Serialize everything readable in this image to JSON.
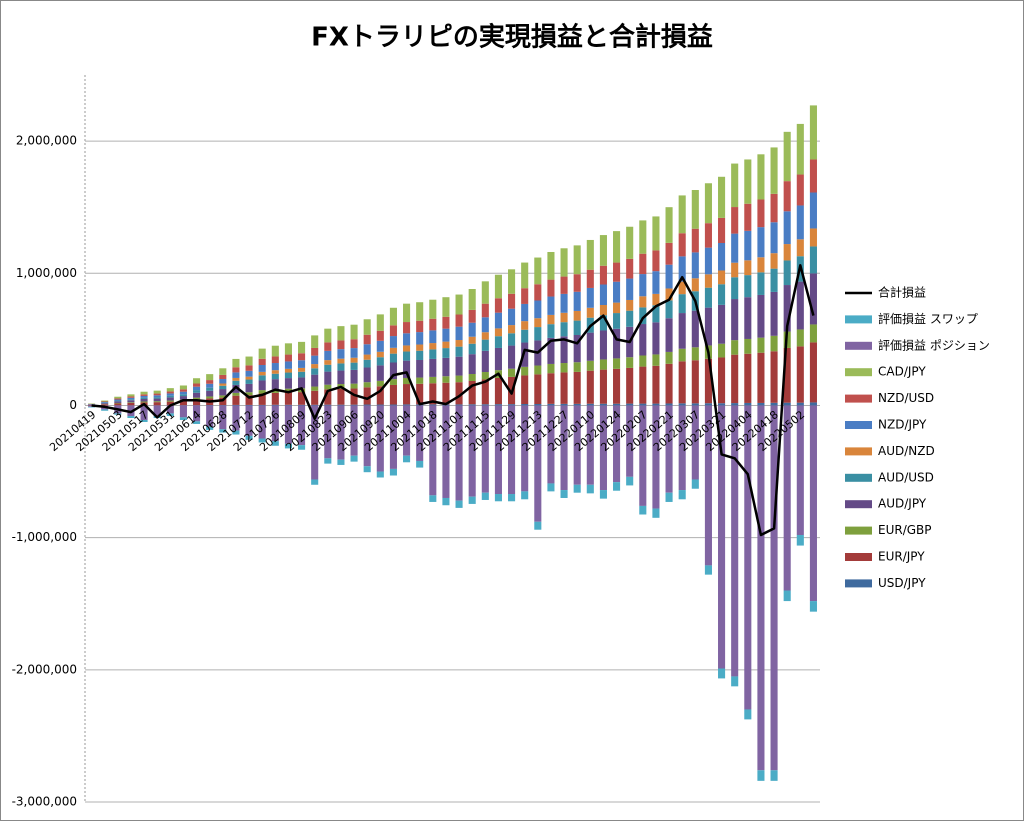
{
  "chart_data": {
    "type": "bar",
    "stacked": true,
    "title": "FXトラリピの実現損益と合計損益",
    "categories": [
      "20210419",
      null,
      "20210503",
      null,
      "20210517",
      null,
      "20210531",
      null,
      "20210614",
      null,
      "20210628",
      null,
      "20210712",
      null,
      "20210726",
      null,
      "20210809",
      null,
      "20210823",
      null,
      "20210906",
      null,
      "20210920",
      null,
      "20211004",
      null,
      "20211018",
      null,
      "20211101",
      null,
      "20211115",
      null,
      "20211129",
      null,
      "20211213",
      null,
      "20211227",
      null,
      "20220110",
      null,
      "20220124",
      null,
      "20220207",
      null,
      "20220221",
      null,
      "20220307",
      null,
      "20220321",
      null,
      "20220404",
      null,
      "20220418",
      null,
      "20220502",
      null
    ],
    "ylim": [
      -3000000,
      2500000
    ],
    "yticks": [
      {
        "value": -3000000,
        "label": "-3,000,000"
      },
      {
        "value": -2000000,
        "label": "-2,000,000"
      },
      {
        "value": -1000000,
        "label": "-1,000,000"
      },
      0,
      {
        "value": 1000000,
        "label": "1,000,000"
      },
      {
        "value": 2000000,
        "label": "2,000,000"
      }
    ],
    "negative_tick_color": "#ff0000",
    "grid": true,
    "legend": "right",
    "series": [
      {
        "name": "USD/JPY",
        "color": "#3f6a9e",
        "values": [
          0,
          0,
          1000,
          1000,
          1000,
          1000,
          1000,
          2000,
          2000,
          3000,
          3000,
          4000,
          4000,
          4000,
          5000,
          5000,
          5000,
          5000,
          6000,
          6000,
          6000,
          7000,
          7000,
          7000,
          8000,
          8000,
          8000,
          8000,
          8000,
          9000,
          9000,
          10000,
          10000,
          11000,
          11000,
          12000,
          12000,
          12000,
          13000,
          13000,
          13000,
          14000,
          14000,
          14000,
          15000,
          16000,
          16000,
          17000,
          17000,
          18000,
          19000,
          19000,
          20000,
          21000,
          21000,
          23000
        ]
      },
      {
        "name": "EUR/JPY",
        "color": "#a33b3a",
        "values": [
          3000,
          8000,
          14000,
          18000,
          22000,
          24000,
          28000,
          32000,
          44000,
          50000,
          56000,
          70000,
          74000,
          86000,
          90000,
          94000,
          96000,
          106000,
          116000,
          120000,
          122000,
          130000,
          138000,
          148000,
          154000,
          156000,
          160000,
          164000,
          168000,
          176000,
          188000,
          198000,
          206000,
          216000,
          224000,
          232000,
          238000,
          242000,
          250000,
          258000,
          264000,
          270000,
          280000,
          286000,
          300000,
          318000,
          326000,
          336000,
          346000,
          366000,
          372000,
          380000,
          390000,
          414000,
          426000,
          454000
        ]
      },
      {
        "name": "EUR/GBP",
        "color": "#7ea03d",
        "values": [
          1000,
          2000,
          4000,
          5000,
          7000,
          7000,
          8000,
          10000,
          13000,
          15000,
          17000,
          21000,
          22000,
          26000,
          27000,
          28000,
          29000,
          32000,
          35000,
          36000,
          37000,
          39000,
          41000,
          44000,
          46000,
          47000,
          48000,
          49000,
          50000,
          53000,
          56000,
          59000,
          62000,
          65000,
          67000,
          70000,
          71000,
          73000,
          75000,
          77000,
          79000,
          81000,
          84000,
          86000,
          90000,
          95000,
          98000,
          101000,
          104000,
          110000,
          112000,
          114000,
          117000,
          124000,
          128000,
          136000
        ]
      },
      {
        "name": "AUD/JPY",
        "color": "#644a87",
        "values": [
          3000,
          7000,
          12000,
          15000,
          19000,
          20000,
          24000,
          27000,
          37000,
          43000,
          48000,
          60000,
          63000,
          73000,
          77000,
          80000,
          82000,
          90000,
          99000,
          102000,
          104000,
          111000,
          117000,
          126000,
          131000,
          133000,
          136000,
          139000,
          143000,
          150000,
          160000,
          168000,
          175000,
          184000,
          190000,
          197000,
          202000,
          206000,
          213000,
          219000,
          224000,
          230000,
          238000,
          243000,
          255000,
          270000,
          277000,
          286000,
          294000,
          311000,
          316000,
          323000,
          332000,
          352000,
          362000,
          386000
        ]
      },
      {
        "name": "AUD/USD",
        "color": "#3a8fa3",
        "values": [
          1000,
          4000,
          6000,
          8000,
          10000,
          11000,
          13000,
          14000,
          20000,
          23000,
          25000,
          32000,
          33000,
          39000,
          41000,
          42000,
          43000,
          48000,
          52000,
          54000,
          55000,
          59000,
          62000,
          67000,
          69000,
          70000,
          72000,
          74000,
          76000,
          79000,
          85000,
          89000,
          93000,
          97000,
          101000,
          104000,
          107000,
          109000,
          113000,
          116000,
          119000,
          122000,
          126000,
          129000,
          135000,
          143000,
          147000,
          151000,
          156000,
          165000,
          167000,
          171000,
          176000,
          186000,
          192000,
          204000
        ]
      },
      {
        "name": "AUD/NZD",
        "color": "#d9853b",
        "values": [
          0,
          0,
          0,
          0,
          0,
          0,
          0,
          0,
          0,
          0,
          17000,
          21000,
          22000,
          26000,
          27000,
          28000,
          29000,
          32000,
          35000,
          36000,
          37000,
          39000,
          41000,
          44000,
          46000,
          47000,
          48000,
          49000,
          50000,
          53000,
          56000,
          59000,
          62000,
          65000,
          67000,
          70000,
          71000,
          73000,
          75000,
          77000,
          79000,
          81000,
          84000,
          86000,
          90000,
          95000,
          98000,
          101000,
          104000,
          110000,
          112000,
          114000,
          117000,
          124000,
          128000,
          136000
        ]
      },
      {
        "name": "NZD/JPY",
        "color": "#4a7dc4",
        "values": [
          2000,
          5000,
          8000,
          11000,
          13000,
          14000,
          17000,
          19000,
          26000,
          30000,
          34000,
          42000,
          44000,
          52000,
          54000,
          56000,
          58000,
          64000,
          70000,
          72000,
          73000,
          78000,
          83000,
          89000,
          92000,
          94000,
          96000,
          98000,
          101000,
          106000,
          113000,
          119000,
          124000,
          130000,
          134000,
          139000,
          143000,
          145000,
          150000,
          155000,
          158000,
          162000,
          168000,
          172000,
          180000,
          191000,
          196000,
          202000,
          208000,
          220000,
          223000,
          228000,
          234000,
          248000,
          256000,
          272000
        ]
      },
      {
        "name": "NZD/USD",
        "color": "#c0504d",
        "values": [
          2000,
          4000,
          8000,
          10000,
          12000,
          13000,
          15000,
          18000,
          24000,
          28000,
          31000,
          39000,
          41000,
          47000,
          50000,
          52000,
          53000,
          58000,
          64000,
          66000,
          67000,
          72000,
          76000,
          81000,
          85000,
          86000,
          88000,
          90000,
          92000,
          97000,
          103000,
          109000,
          113000,
          119000,
          123000,
          128000,
          131000,
          133000,
          138000,
          142000,
          145000,
          149000,
          154000,
          157000,
          165000,
          175000,
          179000,
          185000,
          190000,
          201000,
          205000,
          209000,
          215000,
          228000,
          234000,
          250000
        ]
      },
      {
        "name": "CAD/JPY",
        "color": "#9bbb59",
        "values": [
          3000,
          7000,
          13000,
          16000,
          20000,
          22000,
          25000,
          29000,
          40000,
          45000,
          50000,
          63000,
          67000,
          77000,
          81000,
          85000,
          86000,
          95000,
          104000,
          108000,
          110000,
          117000,
          124000,
          133000,
          139000,
          140000,
          144000,
          148000,
          151000,
          158000,
          169000,
          178000,
          185000,
          194000,
          202000,
          209000,
          214000,
          218000,
          225000,
          232000,
          238000,
          243000,
          252000,
          257000,
          270000,
          286000,
          293000,
          302000,
          311000,
          329000,
          335000,
          342000,
          351000,
          373000,
          383000,
          409000
        ]
      },
      {
        "name": "評価損益 ポジション",
        "color": "#8064a2",
        "values": [
          -10000,
          -30000,
          -60000,
          -80000,
          -110000,
          -80000,
          -60000,
          -90000,
          -120000,
          -160000,
          -180000,
          -190000,
          -230000,
          -250000,
          -270000,
          -290000,
          -300000,
          -560000,
          -400000,
          -410000,
          -380000,
          -460000,
          -500000,
          -480000,
          -380000,
          -420000,
          -680000,
          -700000,
          -720000,
          -690000,
          -660000,
          -670000,
          -670000,
          -650000,
          -880000,
          -590000,
          -640000,
          -600000,
          -600000,
          -640000,
          -580000,
          -540000,
          -760000,
          -780000,
          -660000,
          -640000,
          -560000,
          -1210000,
          -1990000,
          -2050000,
          -2300000,
          -2760000,
          -2760000,
          -1400000,
          -980000,
          -1480000
        ]
      },
      {
        "name": "評価損益 スワップ",
        "color": "#4bacc6",
        "values": [
          -5000,
          -10000,
          -10000,
          -15000,
          -15000,
          -15000,
          -20000,
          -20000,
          -20000,
          -25000,
          -25000,
          -30000,
          -30000,
          -30000,
          -35000,
          -35000,
          -35000,
          -40000,
          -40000,
          -40000,
          -45000,
          -45000,
          -45000,
          -50000,
          -50000,
          -50000,
          -50000,
          -55000,
          -55000,
          -55000,
          -55000,
          -55000,
          -55000,
          -60000,
          -60000,
          -60000,
          -60000,
          -60000,
          -65000,
          -65000,
          -65000,
          -65000,
          -65000,
          -70000,
          -70000,
          -70000,
          -70000,
          -70000,
          -75000,
          -75000,
          -75000,
          -80000,
          -80000,
          -80000,
          -80000,
          -80000
        ]
      },
      {
        "name": "合計損益",
        "type": "line",
        "color": "#000000",
        "values": [
          0,
          -10000,
          -30000,
          -50000,
          10000,
          -90000,
          0,
          40000,
          40000,
          30000,
          40000,
          140000,
          60000,
          80000,
          120000,
          100000,
          130000,
          -100000,
          110000,
          140000,
          80000,
          50000,
          110000,
          230000,
          250000,
          10000,
          30000,
          10000,
          70000,
          150000,
          180000,
          240000,
          90000,
          420000,
          400000,
          490000,
          500000,
          470000,
          600000,
          680000,
          500000,
          480000,
          660000,
          750000,
          800000,
          970000,
          790000,
          400000,
          -370000,
          -400000,
          -520000,
          -980000,
          -930000,
          600000,
          1060000,
          680000
        ]
      }
    ]
  }
}
